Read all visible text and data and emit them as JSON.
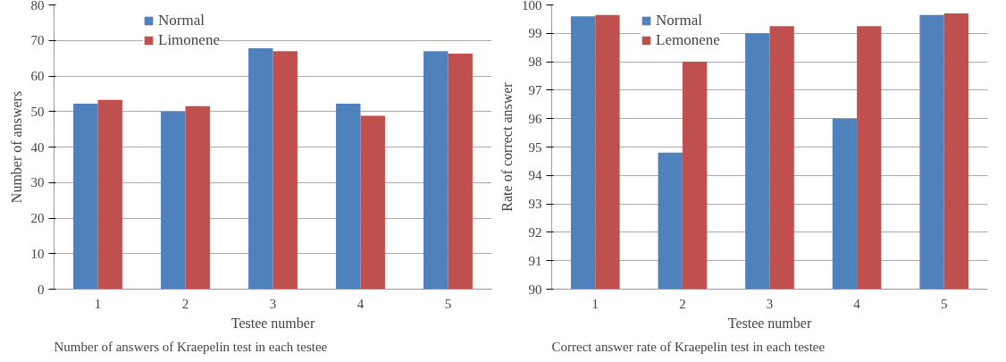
{
  "chart_data": [
    {
      "type": "bar",
      "xlabel": "Testee number",
      "ylabel": "Number of answers",
      "categories": [
        "1",
        "2",
        "3",
        "4",
        "5"
      ],
      "series": [
        {
          "name": "Normal",
          "color": "#4f81bd",
          "values": [
            52.2,
            50,
            67.8,
            52.2,
            67
          ]
        },
        {
          "name": "Limonene",
          "color": "#c0504d",
          "values": [
            53.3,
            51.5,
            67,
            48.8,
            66.3
          ]
        }
      ],
      "ylim": [
        0,
        80
      ],
      "yticks": [
        0,
        10,
        20,
        30,
        40,
        50,
        60,
        70,
        80
      ],
      "grid": "y",
      "legend": "top left",
      "annotations": [
        "Number of answers of Kraepelin  test in each testee"
      ]
    },
    {
      "type": "bar",
      "xlabel": "Testee number",
      "ylabel": "Rate of correct answer",
      "categories": [
        "1",
        "2",
        "3",
        "4",
        "5"
      ],
      "series": [
        {
          "name": "Normal",
          "color": "#4f81bd",
          "values": [
            99.6,
            94.8,
            99.0,
            96.0,
            99.65
          ]
        },
        {
          "name": "Lemonene",
          "color": "#c0504d",
          "values": [
            99.65,
            98.0,
            99.25,
            99.25,
            99.7
          ]
        }
      ],
      "ylim": [
        90,
        100
      ],
      "yticks": [
        90,
        91,
        92,
        93,
        94,
        95,
        96,
        97,
        98,
        99,
        100
      ],
      "grid": "y",
      "legend": "top left",
      "annotations": [
        "Correct answer rate of Kraepelin  test in each testee"
      ]
    }
  ]
}
